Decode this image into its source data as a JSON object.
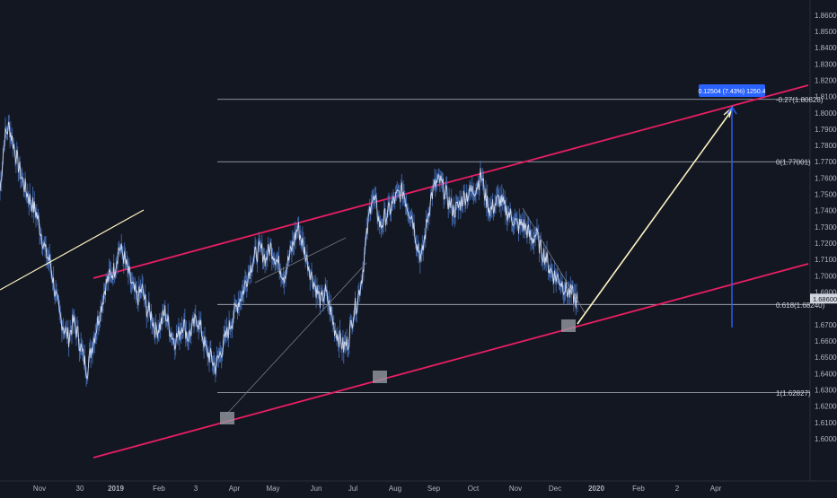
{
  "chart_data": {
    "type": "line",
    "title": "",
    "xlabel": "",
    "ylabel": "",
    "ylim": [
      1.595,
      1.865
    ],
    "grid": false,
    "colors": {
      "background": "#131722",
      "series": "#4a78c8",
      "channel": "#e91e63",
      "fib": "#cfd3dc",
      "projection": "#fff5c2",
      "measure": "#2962ff",
      "axis_text": "#b2b5be",
      "pivot_box": "#9598a1"
    },
    "x_tick_labels": [
      "Nov",
      "30",
      "2019",
      "Feb",
      "3",
      "Apr",
      "May",
      "Jun",
      "Jul",
      "Aug",
      "Sep",
      "Oct",
      "Nov",
      "Dec",
      "2020",
      "Feb",
      "2",
      "Apr"
    ],
    "y_tick_labels": [
      "1.86000",
      "1.85000",
      "1.84000",
      "1.83000",
      "1.82000",
      "1.81000",
      "1.80000",
      "1.79000",
      "1.78000",
      "1.77000",
      "1.76000",
      "1.75000",
      "1.74000",
      "1.73000",
      "1.72000",
      "1.71000",
      "1.70000",
      "1.69000",
      "1.67000",
      "1.66000",
      "1.65000",
      "1.64000",
      "1.63000",
      "1.62000",
      "1.61000",
      "1.60000"
    ],
    "current_price_label": "1.68600",
    "fib_levels": [
      {
        "label": "-0.27(1.80828)",
        "value": 1.80828
      },
      {
        "label": "0(1.77001)",
        "value": 1.77001
      },
      {
        "label": "0.618(1.68240)",
        "value": 1.6824
      },
      {
        "label": "1(1.62827)",
        "value": 1.62827
      }
    ],
    "measure_label": "0.12504 (7.43%) 1250.4",
    "series": [
      {
        "values": [
          1.752,
          1.785,
          1.792,
          1.78,
          1.768,
          1.758,
          1.75,
          1.744,
          1.738,
          1.726,
          1.714,
          1.708,
          1.69,
          1.676,
          1.668,
          1.662,
          1.672,
          1.664,
          1.652,
          1.642,
          1.656,
          1.668,
          1.68,
          1.694,
          1.7,
          1.704,
          1.718,
          1.712,
          1.702,
          1.692,
          1.686,
          1.692,
          1.68,
          1.676,
          1.666,
          1.67,
          1.678,
          1.668,
          1.66,
          1.664,
          1.672,
          1.662,
          1.668,
          1.674,
          1.666,
          1.654,
          1.65,
          1.644,
          1.652,
          1.66,
          1.668,
          1.676,
          1.684,
          1.69,
          1.7,
          1.708,
          1.714,
          1.716,
          1.71,
          1.718,
          1.712,
          1.706,
          1.7,
          1.71,
          1.72,
          1.73,
          1.72,
          1.71,
          1.7,
          1.692,
          1.684,
          1.69,
          1.68,
          1.668,
          1.662,
          1.656,
          1.66,
          1.676,
          1.685,
          1.7,
          1.724,
          1.748,
          1.744,
          1.73,
          1.736,
          1.74,
          1.746,
          1.75,
          1.752,
          1.742,
          1.736,
          1.72,
          1.71,
          1.73,
          1.748,
          1.756,
          1.758,
          1.752,
          1.745,
          1.74,
          1.742,
          1.748,
          1.75,
          1.752,
          1.755,
          1.762,
          1.748,
          1.74,
          1.744,
          1.747,
          1.742,
          1.738,
          1.735,
          1.73,
          1.732,
          1.728,
          1.722,
          1.726,
          1.716,
          1.712,
          1.704,
          1.7,
          1.698,
          1.694,
          1.69,
          1.688,
          1.684
        ]
      }
    ]
  }
}
